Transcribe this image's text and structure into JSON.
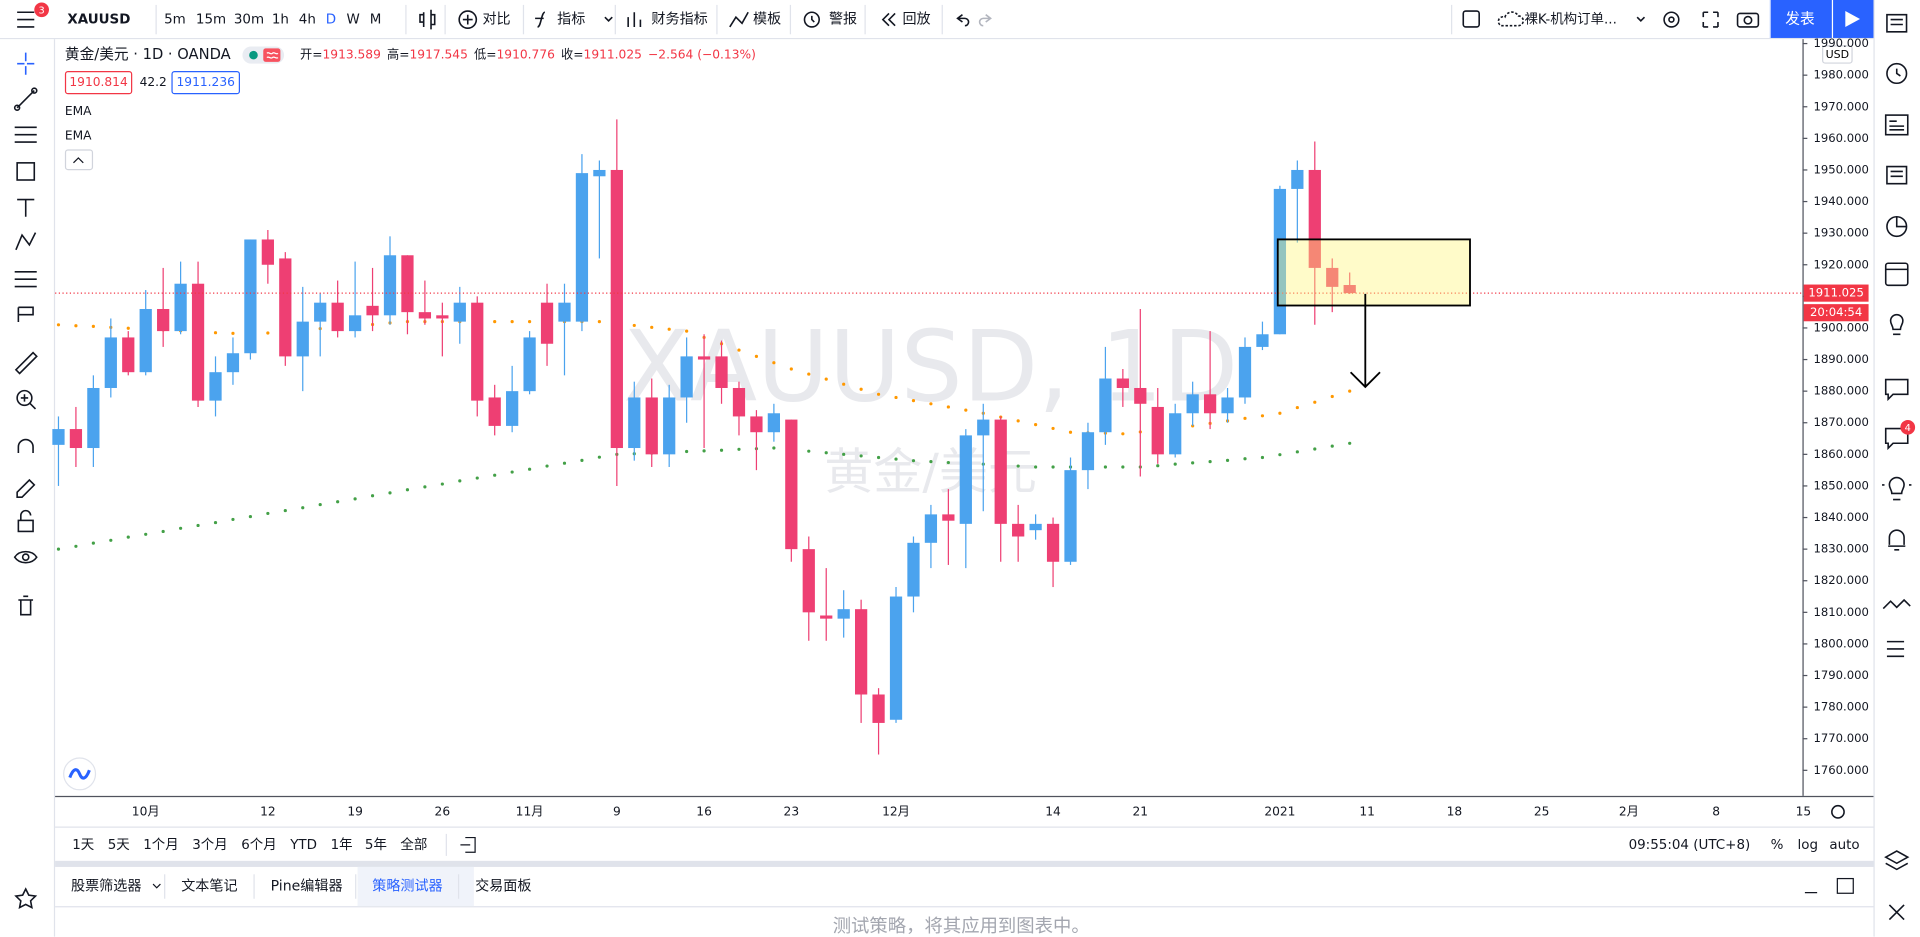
{
  "top_toolbar": {
    "badge": "3",
    "symbol": "XAUUSD",
    "intervals": [
      "5m",
      "15m",
      "30m",
      "1h",
      "4h",
      "D",
      "W",
      "M"
    ],
    "active_interval": 5,
    "buttons": [
      "对比",
      "指标",
      "财务指标",
      "模板",
      "警报",
      "回放"
    ],
    "layout_name": "裸K-机构订单...",
    "publish": "发表"
  },
  "legend": {
    "title": "黄金/美元 · 1D · OANDA",
    "ohlc_labels": [
      "开=",
      "高=",
      "低=",
      "收="
    ],
    "change": "−2.564 (−0.13%)",
    "bid": 1910.814,
    "spread": 42.2,
    "ask": 1911.236
  },
  "watermark": {
    "symbol": "XAUUSD, 1D",
    "name": "黄金/美元"
  },
  "chart_data": {
    "type": "candlestick",
    "currency": "USD",
    "last_price_time": "20:04:54",
    "up_color": "#4ba3ee",
    "down_color": "#ee3f73",
    "grid": false,
    "ylim": [
      1751.9,
      1991
    ],
    "yticks": [
      {
        "value": 1760,
        "label": "1760.000"
      },
      {
        "value": 1770,
        "label": "1770.000"
      },
      {
        "value": 1780,
        "label": "1780.000"
      },
      {
        "value": 1790,
        "label": "1790.000"
      },
      {
        "value": 1800,
        "label": "1800.000"
      },
      {
        "value": 1810,
        "label": "1810.000"
      },
      {
        "value": 1820,
        "label": "1820.000"
      },
      {
        "value": 1830,
        "label": "1830.000"
      },
      {
        "value": 1840,
        "label": "1840.000"
      },
      {
        "value": 1850,
        "label": "1850.000"
      },
      {
        "value": 1860,
        "label": "1860.000"
      },
      {
        "value": 1870,
        "label": "1870.000"
      },
      {
        "value": 1880,
        "label": "1880.000"
      },
      {
        "value": 1890,
        "label": "1890.000"
      },
      {
        "value": 1900,
        "label": "1900.000"
      },
      {
        "value": 1910,
        "label": "1910.000"
      },
      {
        "value": 1920,
        "label": "1920.000"
      },
      {
        "value": 1930,
        "label": "1930.000"
      },
      {
        "value": 1940,
        "label": "1940.000"
      },
      {
        "value": 1950,
        "label": "1950.000"
      },
      {
        "value": 1960,
        "label": "1960.000"
      },
      {
        "value": 1970,
        "label": "1970.000"
      },
      {
        "value": 1980,
        "label": "1980.000"
      },
      {
        "value": 1990,
        "label": "1990.000"
      }
    ],
    "categories": [
      null,
      null,
      null,
      null,
      null,
      "10月",
      null,
      null,
      null,
      null,
      null,
      null,
      "12",
      null,
      null,
      null,
      null,
      "19",
      null,
      null,
      null,
      null,
      "26",
      null,
      null,
      null,
      null,
      "11月",
      null,
      null,
      null,
      null,
      "9",
      null,
      null,
      null,
      null,
      "16",
      null,
      null,
      null,
      null,
      "23",
      null,
      null,
      null,
      null,
      null,
      "12月",
      null,
      null,
      null,
      null,
      null,
      null,
      null,
      null,
      "14",
      null,
      null,
      null,
      null,
      "21",
      null,
      null,
      null,
      null,
      null,
      null,
      null,
      "2021",
      null,
      null,
      null,
      null,
      "11",
      null,
      null,
      null,
      null,
      "18",
      null,
      null,
      null,
      null,
      "25",
      null,
      null,
      null,
      null,
      "2月",
      null,
      null,
      null,
      null,
      "8",
      null,
      null,
      null,
      null,
      "15"
    ],
    "open": [
      1863,
      1868,
      1862,
      1881,
      1897,
      1886,
      1906,
      1899,
      1914,
      1877,
      1886,
      1892,
      1928,
      1922,
      1891,
      1902,
      1908,
      1899,
      1907,
      1904,
      1923,
      1905,
      1904,
      1902,
      1908,
      1878,
      1869,
      1880,
      1908,
      1902,
      1902,
      1948,
      1950,
      1862,
      1878,
      1860,
      1878,
      1891,
      1891,
      1881,
      1872,
      1867,
      1871,
      1830,
      1809,
      1808,
      1811,
      1784,
      1776,
      1815,
      1832,
      1841,
      1838,
      1866,
      1871,
      1838,
      1836,
      1838,
      1826,
      1855,
      1867,
      1884,
      1881,
      1875,
      1860,
      1873,
      1879,
      1873,
      1878,
      1894,
      1898,
      1944,
      1950,
      1919,
      1913.589,
      null,
      null,
      null,
      null,
      null,
      null,
      null,
      null,
      null,
      null,
      null,
      null,
      null,
      null,
      null,
      null,
      null,
      null,
      null,
      null,
      null,
      null,
      null,
      null,
      null,
      null
    ],
    "high": [
      1872,
      1875,
      1885,
      1903,
      1899,
      1912,
      1919,
      1921,
      1921,
      1891,
      1897,
      1928,
      1931,
      1924,
      1913,
      1911,
      1915,
      1921,
      1919,
      1929,
      1923,
      1915,
      1908,
      1913,
      1910,
      1882,
      1888,
      1899,
      1914,
      1914,
      1955,
      1953,
      1966,
      1883,
      1884,
      1882,
      1897,
      1898,
      1896,
      1883,
      1874,
      1876,
      1871,
      1834,
      1824,
      1817,
      1814,
      1786,
      1818,
      1834,
      1844,
      1849,
      1868,
      1876,
      1872,
      1844,
      1841,
      1840,
      1859,
      1870,
      1894,
      1887,
      1906,
      1881,
      1876,
      1883,
      1899,
      1881,
      1897,
      1902,
      1945,
      1953,
      1959,
      1922,
      1917.545,
      null,
      null,
      null,
      null,
      null,
      null,
      null,
      null,
      null,
      null,
      null,
      null,
      null,
      null,
      null,
      null,
      null,
      null,
      null,
      null,
      null,
      null,
      null,
      null,
      null,
      null
    ],
    "low": [
      1850,
      1856,
      1856,
      1878,
      1885,
      1885,
      1894,
      1898,
      1875,
      1872,
      1882,
      1890,
      1914,
      1888,
      1880,
      1891,
      1897,
      1897,
      1899,
      1901,
      1898,
      1901,
      1891,
      1895,
      1872,
      1866,
      1867,
      1879,
      1888,
      1885,
      1899,
      1922,
      1850,
      1858,
      1856,
      1856,
      1870,
      1862,
      1876,
      1866,
      1855,
      1864,
      1826,
      1801,
      1801,
      1802,
      1775,
      1765,
      1775,
      1810,
      1824,
      1825,
      1824,
      1842,
      1826,
      1826,
      1833,
      1818,
      1825,
      1849,
      1863,
      1875,
      1853,
      1857,
      1859,
      1869,
      1868,
      1870,
      1876,
      1893,
      1898,
      1927,
      1901,
      1905,
      1910.776,
      null,
      null,
      null,
      null,
      null,
      null,
      null,
      null,
      null,
      null,
      null,
      null,
      null,
      null,
      null,
      null,
      null,
      null,
      null,
      null,
      null,
      null,
      null,
      null,
      null,
      null
    ],
    "close": [
      1868,
      1862,
      1881,
      1897,
      1886,
      1906,
      1899,
      1914,
      1877,
      1886,
      1892,
      1928,
      1920,
      1891,
      1902,
      1908,
      1899,
      1904,
      1904,
      1923,
      1905,
      1903,
      1903,
      1908,
      1877,
      1869,
      1880,
      1897,
      1895,
      1908,
      1949,
      1950,
      1862,
      1878,
      1860,
      1878,
      1891,
      1890,
      1881,
      1872,
      1867,
      1873,
      1830,
      1810,
      1808,
      1811,
      1784,
      1775,
      1815,
      1832,
      1841,
      1839,
      1866,
      1871,
      1838,
      1834,
      1838,
      1826,
      1855,
      1867,
      1884,
      1881,
      1876,
      1860,
      1873,
      1879,
      1873,
      1878,
      1894,
      1898,
      1944,
      1950,
      1919,
      1913,
      1911.025,
      null,
      null,
      null,
      null,
      null,
      null,
      null,
      null,
      null,
      null,
      null,
      null,
      null,
      null,
      null,
      null,
      null,
      null,
      null,
      null,
      null,
      null,
      null,
      null,
      null,
      null
    ],
    "series": [
      {
        "name": "EMA",
        "color": "#ff9800",
        "values": [
          1901,
          1900.7,
          1900.5,
          1900.2,
          1899.9,
          1899.6,
          1899.4,
          1899.1,
          1898.8,
          1898.5,
          1898.3,
          1898,
          1898.4,
          1898.9,
          1899.3,
          1899.8,
          1900.2,
          1900.7,
          1901.1,
          1901.6,
          1902,
          1902,
          1902,
          1902,
          1902,
          1902,
          1902,
          1902,
          1902,
          1902,
          1902,
          1902,
          1901.4,
          1900.8,
          1900.2,
          1899.6,
          1899,
          1897,
          1895,
          1893,
          1891,
          1889,
          1887,
          1885.4,
          1883.8,
          1882.2,
          1880.6,
          1879,
          1878,
          1877,
          1876,
          1875,
          1874,
          1873,
          1871.8,
          1870.6,
          1869.4,
          1868.2,
          1867,
          1866.8,
          1866.7,
          1866.5,
          1867.1,
          1867.8,
          1868.4,
          1869,
          1869.8,
          1870.6,
          1871.4,
          1872.2,
          1873,
          1874.8,
          1876.5,
          1878.3,
          1880,
          null,
          null,
          null,
          null,
          null,
          null,
          null,
          null,
          null,
          null,
          null,
          null,
          null,
          null,
          null,
          null,
          null,
          null,
          null,
          null,
          null,
          null,
          null,
          null,
          null,
          null
        ]
      },
      {
        "name": "EMA",
        "color": "#43a047",
        "values": [
          1830,
          1830.9,
          1831.9,
          1832.8,
          1833.8,
          1834.7,
          1835.6,
          1836.6,
          1837.5,
          1838.4,
          1839.4,
          1840.3,
          1841.3,
          1842.2,
          1843.1,
          1844.1,
          1845,
          1845.9,
          1846.9,
          1847.8,
          1848.8,
          1849.7,
          1850.6,
          1851.6,
          1852.5,
          1853.4,
          1854.4,
          1855.3,
          1856.3,
          1857.2,
          1858.1,
          1859.1,
          1860,
          1860.2,
          1860.4,
          1860.7,
          1860.9,
          1861.1,
          1861.3,
          1861.6,
          1861.8,
          1862,
          1861.5,
          1861,
          1860.5,
          1860,
          1859.5,
          1859,
          1858.5,
          1858,
          1857.7,
          1857.4,
          1857.1,
          1856.9,
          1856.6,
          1856.3,
          1856,
          1856,
          1856,
          1856,
          1856,
          1856,
          1856,
          1856.4,
          1856.9,
          1857.3,
          1857.7,
          1858.1,
          1858.6,
          1859,
          1859.9,
          1860.8,
          1861.7,
          1862.6,
          1863.5,
          null,
          null,
          null,
          null,
          null,
          null,
          null,
          null,
          null,
          null,
          null,
          null,
          null,
          null,
          null,
          null,
          null,
          null,
          null,
          null,
          null,
          null,
          null,
          null,
          null,
          null
        ]
      }
    ]
  },
  "range_bar": {
    "ranges": [
      "1天",
      "5天",
      "1个月",
      "3个月",
      "6个月",
      "YTD",
      "1年",
      "5年",
      "全部"
    ],
    "clock": "09:55:04 (UTC+8)",
    "options": [
      "%",
      "log",
      "auto"
    ]
  },
  "bottom_panel": {
    "tabs": [
      "股票筛选器",
      "文本笔记",
      "Pine编辑器",
      "策略测试器",
      "交易面板"
    ],
    "active_tab": 3,
    "message": "测试策略，将其应用到图表中。"
  },
  "right_sidebar": {
    "badge": "4"
  }
}
